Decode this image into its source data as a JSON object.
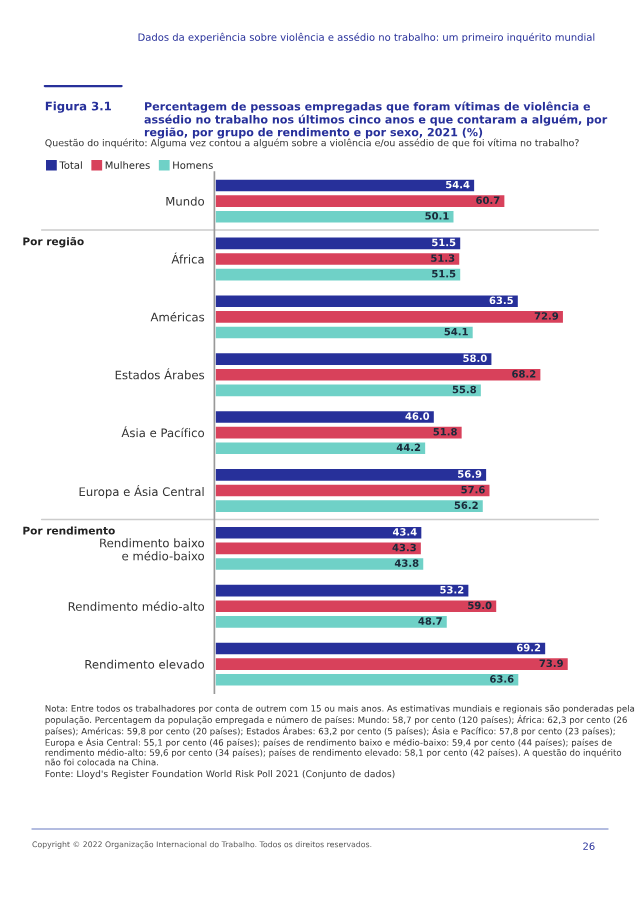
{
  "chart_data": {
    "type": "bar",
    "orientation": "horizontal",
    "title": "Percentagem de pessoas empregadas que foram vítimas de violência e assédio no trabalho nos últimos cinco anos e que contaram a alguém, por região, por grupo de rendimento e por sexo, 2021 (%)",
    "subtitle": "Questão do inquérito: Alguma vez contou a alguém sobre a violência e/ou assédio de que foi vítima no trabalho?",
    "categories": [
      "Mundo",
      "África",
      "Américas",
      "Estados Árabes",
      "Ásia e Pacífico",
      "Europa e Ásia Central",
      "Rendimento baixo\ne médio-baixo",
      "Rendimento médio-alto",
      "Rendimento elevado"
    ],
    "series": [
      {
        "name": "Total",
        "color": "#27309a",
        "values": [
          54.4,
          51.5,
          63.5,
          58.0,
          46.0,
          56.9,
          43.4,
          53.2,
          69.2
        ],
        "value_labels": [
          "54.4",
          "51.5",
          "63.5",
          "58.0",
          "46.0",
          "56.9",
          "43.4",
          "53.2",
          "69.2"
        ]
      },
      {
        "name": "Mulheres",
        "color": "#d8415b",
        "values": [
          60.7,
          51.3,
          72.9,
          68.2,
          51.8,
          57.6,
          43.3,
          59.0,
          73.9
        ],
        "value_labels": [
          "60.7",
          "51.3",
          "72.9",
          "68.2",
          "51.8",
          "57.6",
          "43.3",
          "59.0",
          "73.9"
        ]
      },
      {
        "name": "Homens",
        "color": "#6fd1c7",
        "values": [
          50.1,
          51.5,
          54.1,
          55.8,
          44.2,
          56.2,
          43.8,
          48.7,
          63.6
        ],
        "value_labels": [
          "50.1",
          "51.5",
          "54.1",
          "55.8",
          "44.2",
          "56.2",
          "43.8",
          "48.7",
          "63.6"
        ]
      }
    ],
    "xlim": [
      0,
      80
    ],
    "tick_labels": "y",
    "legend": "top left",
    "grid": false,
    "annotations": [
      "Dados da experiência sobre violência e assédio no trabalho: um primeiro inquérito mundial",
      "Figura 3.1",
      "Por região",
      "Por rendimento",
      "Nota: Entre todos os trabalhadores por conta de outrem com 15 ou mais anos. As estimativas mundiais e regionais são ponderadas pela população. Percentagem da população empregada e número de países: Mundo: 58,7 por cento (120 países); África: 62,3 por cento (26 países); Américas: 59,8 por cento (20 países); Estados Árabes: 63,2 por cento (5 países); Ásia e Pacífico: 57,8 por cento (23 países); Europa e Ásia Central: 55,1 por cento (46 países); países de rendimento baixo e médio-baixo: 59,4 por cento (44 países); países de rendimento médio-alto: 59,6 por cento (34 países); países de rendimento elevado: 58,1 por cento (42 países). A questão do inquérito não foi colocada na China.",
      "Fonte: Lloyd's Register Foundation World Risk Poll 2021 (Conjunto de dados)",
      "Copyright © 2022 Organização Internacional do Trabalho. Todos os direitos reservados.",
      "26"
    ]
  }
}
